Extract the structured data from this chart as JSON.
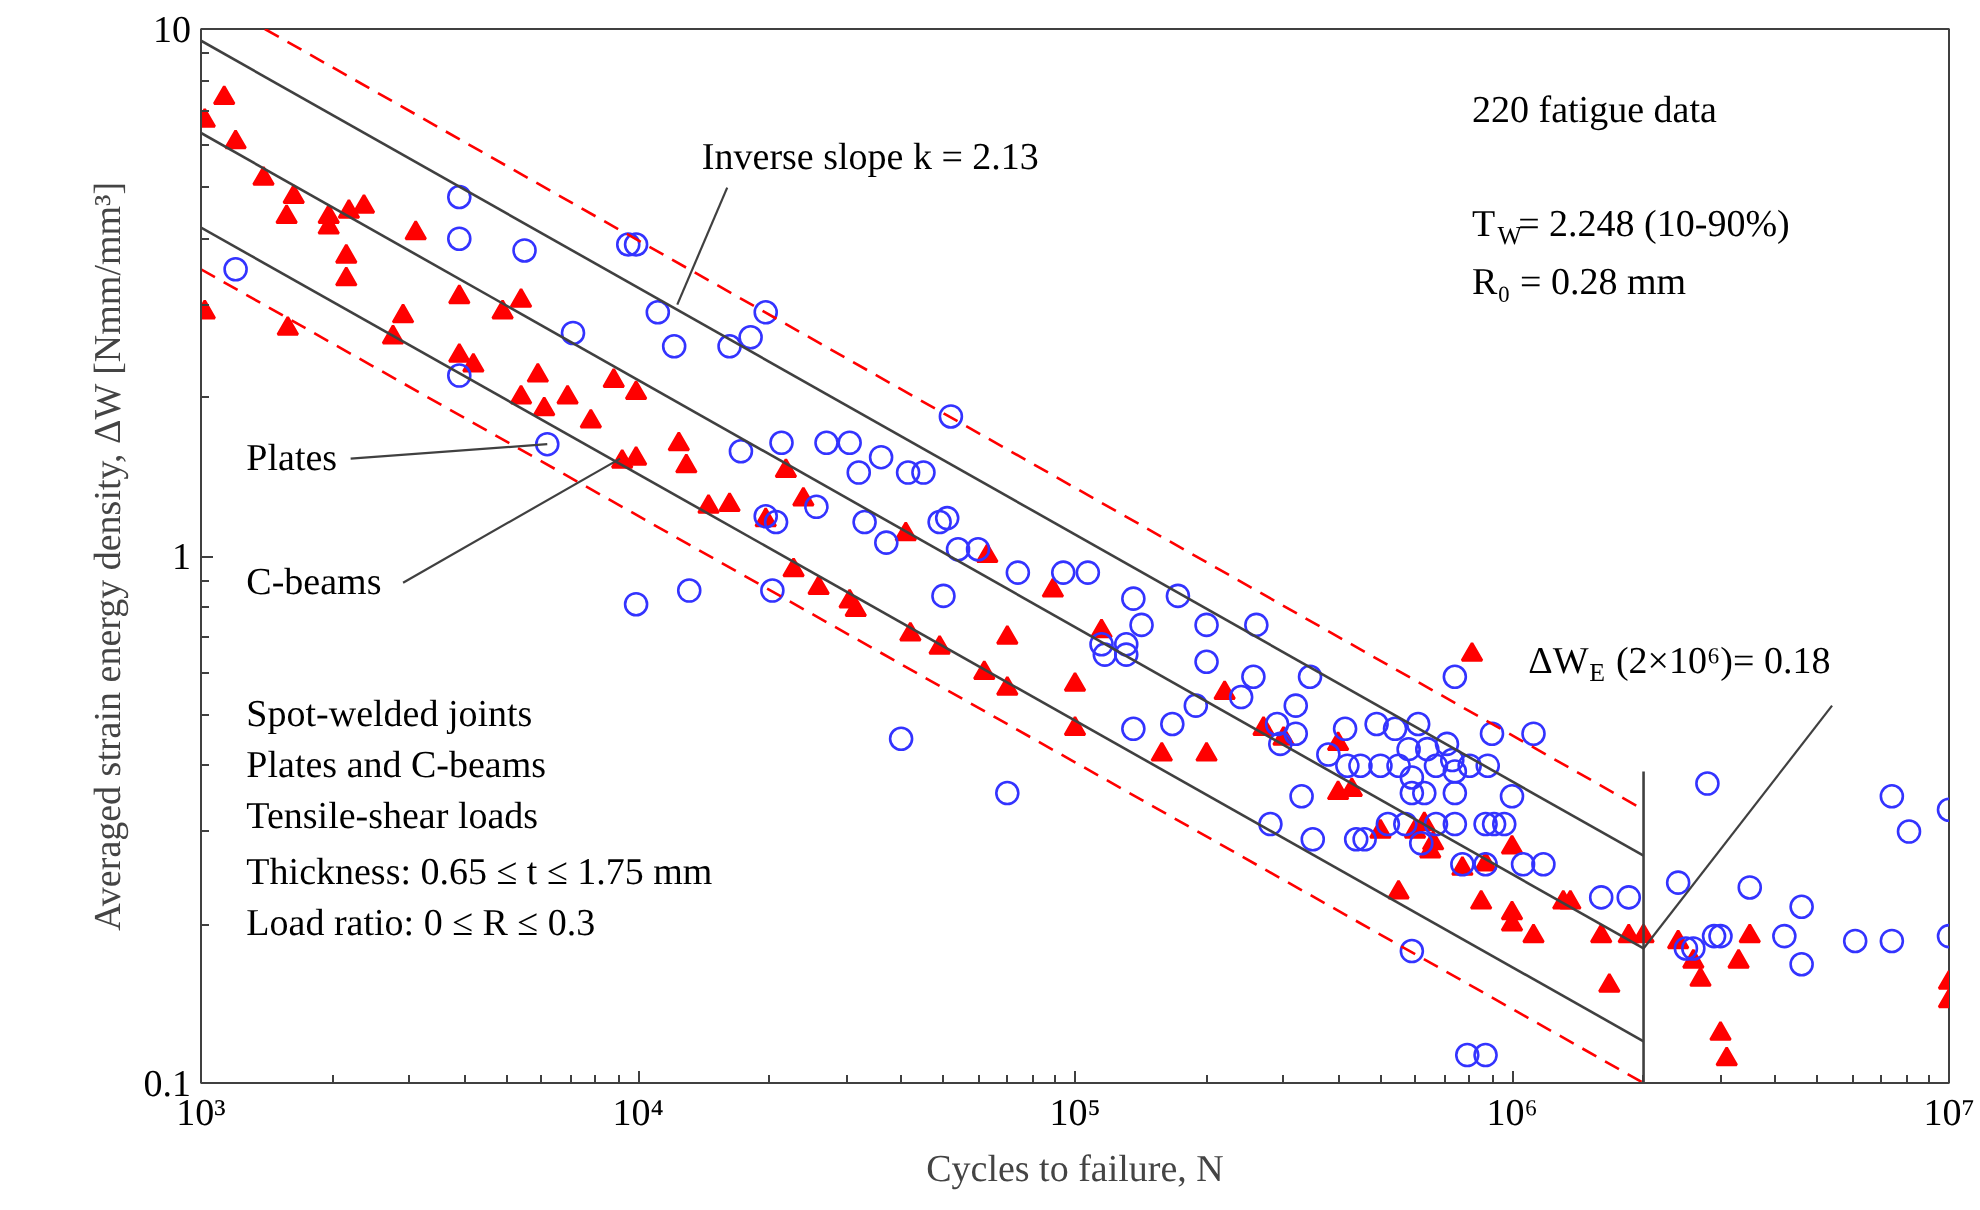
{
  "chart_data": {
    "type": "scatter",
    "xlabel": "Cycles to failure, N",
    "ylabel": "Averaged strain energy density, ΔW [Nmm/mm³]",
    "log": "xy",
    "xlim": [
      1000,
      10000000
    ],
    "ylim": [
      0.1,
      10
    ],
    "xticks": [
      {
        "value": 1000,
        "label": "10³"
      },
      {
        "value": 10000,
        "label": "10⁴"
      },
      {
        "value": 100000,
        "label": "10⁵"
      },
      {
        "value": 1000000,
        "label": "10⁶"
      },
      {
        "value": 10000000,
        "label": "10⁷"
      }
    ],
    "yticks": [
      0.1,
      1,
      10
    ],
    "grid": false,
    "series": [
      {
        "marker": "triangle",
        "color": "#ff0000",
        "x": [
          1020,
          1020,
          1130,
          1200,
          1390,
          1570,
          1580,
          1630,
          1960,
          1960,
          2150,
          2150,
          2180,
          2360,
          2750,
          2900,
          3100,
          3900,
          3900,
          4200,
          4900,
          5400,
          5400,
          5900,
          6100,
          6900,
          7800,
          8800,
          9200,
          9900,
          9900,
          12400,
          12900,
          14500,
          16200,
          19600,
          21800,
          22700,
          23900,
          25900,
          30500,
          31500,
          41000,
          42000,
          49000,
          62000,
          63000,
          70000,
          70000,
          89000,
          100000,
          100000,
          115000,
          158000,
          200000,
          220000,
          270000,
          300000,
          400000,
          400000,
          430000,
          500000,
          550000,
          600000,
          630000,
          660000,
          650000,
          770000,
          810000,
          850000,
          870000,
          1000000,
          1000000,
          1000000,
          1120000,
          1310000,
          1360000,
          1600000,
          1670000,
          1850000,
          2000000,
          2400000,
          2600000,
          2700000,
          3000000,
          3100000,
          3300000,
          3500000,
          10000000,
          10000000
        ],
        "values": [
          6.7,
          2.9,
          7.4,
          6.1,
          5.2,
          4.4,
          2.7,
          4.8,
          4.4,
          4.2,
          3.7,
          3.35,
          4.5,
          4.6,
          2.6,
          2.85,
          4.1,
          3.1,
          2.4,
          2.3,
          2.9,
          3.05,
          2.0,
          2.2,
          1.9,
          2.0,
          1.8,
          2.15,
          1.51,
          2.04,
          1.53,
          1.63,
          1.48,
          1.24,
          1.25,
          1.17,
          1.45,
          0.94,
          1.28,
          0.87,
          0.82,
          0.79,
          1.1,
          0.71,
          0.67,
          0.6,
          1.0,
          0.56,
          0.7,
          0.86,
          0.57,
          0.47,
          0.72,
          0.42,
          0.42,
          0.55,
          0.47,
          0.45,
          0.44,
          0.355,
          0.36,
          0.3,
          0.23,
          0.3,
          0.31,
          0.285,
          0.275,
          0.255,
          0.65,
          0.22,
          0.26,
          0.28,
          0.21,
          0.2,
          0.19,
          0.22,
          0.22,
          0.19,
          0.153,
          0.19,
          0.19,
          0.185,
          0.17,
          0.157,
          0.124,
          0.111,
          0.17,
          0.19,
          0.155,
          0.143
        ]
      },
      {
        "marker": "circle",
        "color": "#3333ff",
        "x": [
          1200,
          3900,
          3900,
          3900,
          5500,
          6200,
          7100,
          9500,
          9900,
          9900,
          11100,
          12100,
          13100,
          16200,
          17200,
          18100,
          19600,
          19600,
          20300,
          20700,
          21300,
          25600,
          27000,
          30500,
          32000,
          33000,
          36000,
          37000,
          40000,
          41500,
          45000,
          49000,
          50000,
          51000,
          52000,
          54000,
          60000,
          70000,
          74000,
          94000,
          107000,
          115000,
          117000,
          131000,
          131000,
          136000,
          136000,
          142000,
          167000,
          172000,
          189000,
          200000,
          200000,
          240000,
          256000,
          260000,
          280000,
          290000,
          295000,
          320000,
          320000,
          330000,
          345000,
          350000,
          380000,
          415000,
          420000,
          440000,
          450000,
          460000,
          490000,
          500000,
          520000,
          540000,
          550000,
          570000,
          580000,
          590000,
          590000,
          590000,
          610000,
          620000,
          630000,
          640000,
          670000,
          670000,
          710000,
          730000,
          740000,
          740000,
          740000,
          740000,
          770000,
          790000,
          800000,
          870000,
          870000,
          870000,
          880000,
          900000,
          910000,
          960000,
          1000000,
          1060000,
          1120000,
          1180000,
          1600000,
          1850000,
          2400000,
          2500000,
          2600000,
          2800000,
          2900000,
          3000000,
          3500000,
          4200000,
          4600000,
          4600000,
          6100000,
          7400000,
          7400000,
          8100000,
          10000000,
          10000000
        ],
        "values": [
          3.5,
          4.8,
          4.0,
          2.2,
          3.8,
          1.63,
          2.65,
          3.9,
          3.9,
          0.81,
          2.9,
          2.5,
          0.86,
          2.5,
          1.58,
          2.6,
          2.9,
          1.19,
          0.86,
          1.16,
          1.64,
          1.24,
          1.64,
          1.64,
          1.44,
          1.16,
          1.54,
          1.06,
          0.45,
          1.44,
          1.44,
          1.16,
          0.84,
          1.18,
          1.84,
          1.03,
          1.03,
          0.355,
          0.93,
          0.93,
          0.93,
          0.68,
          0.65,
          0.68,
          0.65,
          0.83,
          0.47,
          0.74,
          0.48,
          0.84,
          0.52,
          0.74,
          0.63,
          0.54,
          0.59,
          0.74,
          0.31,
          0.48,
          0.44,
          0.52,
          0.46,
          0.35,
          0.59,
          0.29,
          0.42,
          0.47,
          0.4,
          0.29,
          0.4,
          0.29,
          0.48,
          0.4,
          0.31,
          0.47,
          0.4,
          0.31,
          0.43,
          0.38,
          0.355,
          0.178,
          0.48,
          0.285,
          0.355,
          0.43,
          0.4,
          0.31,
          0.44,
          0.41,
          0.39,
          0.355,
          0.31,
          0.59,
          0.26,
          0.113,
          0.4,
          0.26,
          0.113,
          0.31,
          0.4,
          0.46,
          0.31,
          0.31,
          0.35,
          0.26,
          0.46,
          0.26,
          0.225,
          0.225,
          0.24,
          0.18,
          0.18,
          0.37,
          0.19,
          0.19,
          0.235,
          0.19,
          0.216,
          0.168,
          0.186,
          0.186,
          0.35,
          0.3,
          0.33,
          0.19
        ]
      },
      {
        "type": "line",
        "line_style": "solid",
        "color": "#404040",
        "x": [
          1000,
          2000000
        ],
        "values": [
          9.5,
          0.27
        ]
      },
      {
        "type": "line",
        "line_style": "solid",
        "color": "#404040",
        "x": [
          1000,
          2000000
        ],
        "values": [
          6.35,
          0.18
        ]
      },
      {
        "type": "line",
        "line_style": "solid",
        "color": "#404040",
        "x": [
          1000,
          2000000
        ],
        "values": [
          4.2,
          0.12
        ]
      },
      {
        "type": "line",
        "line_style": "dashed",
        "color": "#ff0000",
        "x": [
          1400,
          2000000
        ],
        "values": [
          10,
          0.33
        ]
      },
      {
        "type": "line",
        "line_style": "dashed",
        "color": "#ff0000",
        "x": [
          1000,
          2000000
        ],
        "values": [
          3.5,
          0.1
        ]
      },
      {
        "type": "line",
        "line_style": "solid",
        "color": "#404040",
        "x": [
          2000000,
          2000000
        ],
        "values": [
          0.1,
          0.39
        ]
      }
    ],
    "annotations": [
      "220 fatigue data",
      "T$_{W}$= 2.248 (10-90%)",
      "R₀ =  0.28 mm",
      {
        "text": "Inverse slope k = 2.13",
        "x": 12300,
        "y": 3.0
      },
      {
        "text": "Plates",
        "x": 6200,
        "y": 1.63
      },
      {
        "text": "C-beams",
        "x": 9100,
        "y": 1.53
      },
      {
        "text": "ΔW$_{E}$ (2×10⁶)= 0.18",
        "x": 2000000,
        "y": 0.18
      },
      "Spot-welded joints",
      "Plates and C-beams",
      "Tensile-shear loads",
      "Thickness: 0.65 ≤ t ≤ 1.75 mm",
      "Load ratio:  0  ≤  R ≤ 0.3"
    ]
  }
}
